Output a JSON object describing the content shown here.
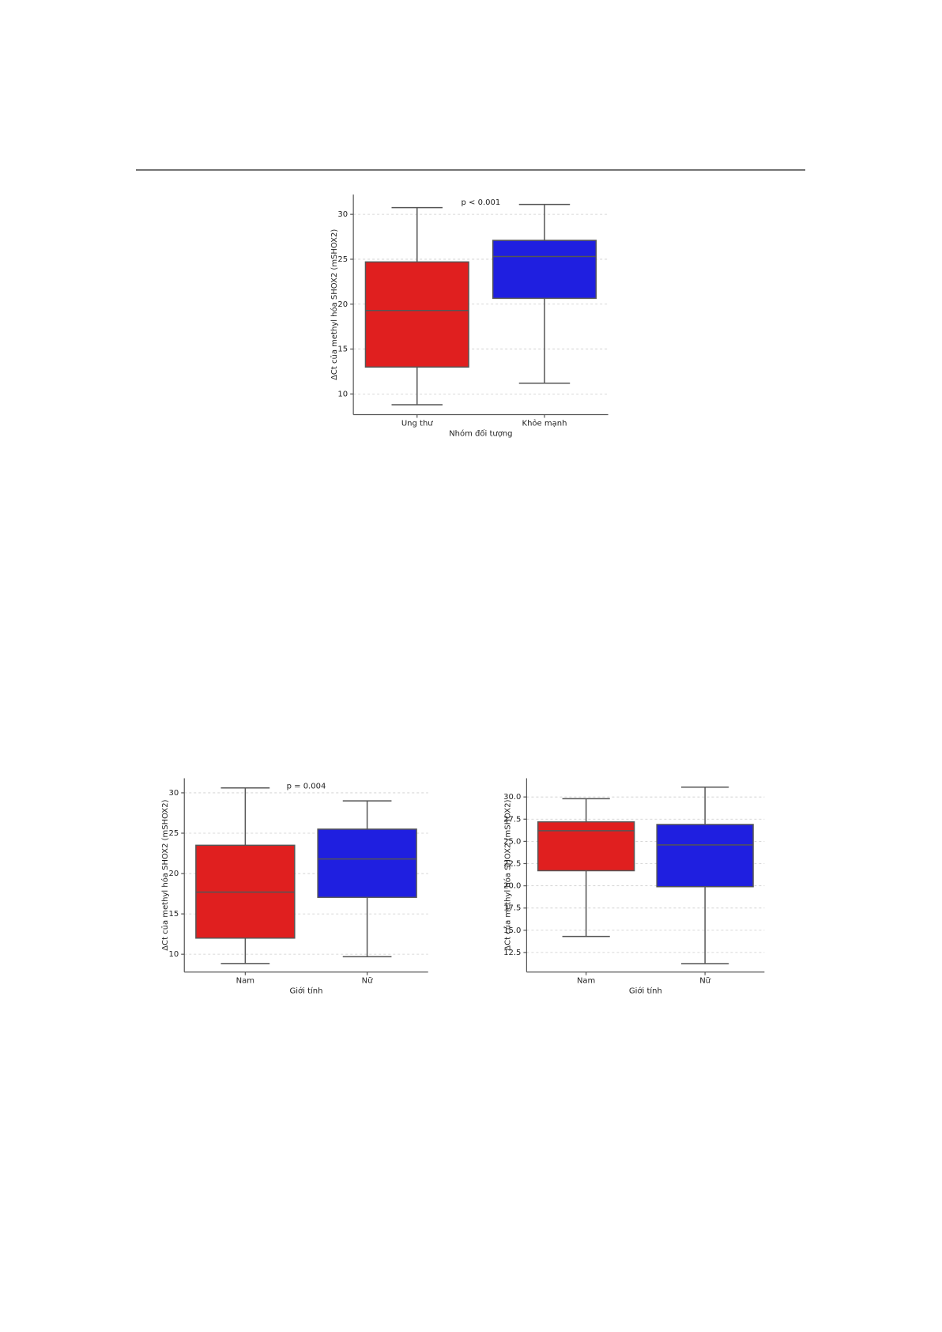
{
  "chart_data": [
    {
      "type": "box",
      "annotation": "p < 0.001",
      "x_label": "Nhóm đối tượng",
      "y_label": "ΔCt của methyl hóa SHOX2 (mSHOX2)",
      "categories": [
        "Ung thư",
        "Khỏe mạnh"
      ],
      "colors": [
        "#e01f1f",
        "#1f1fe0"
      ],
      "boxes": [
        {
          "min": 8.8,
          "q1": 13.0,
          "median": 19.3,
          "q3": 24.7,
          "max": 30.75
        },
        {
          "min": 11.2,
          "q1": 20.65,
          "median": 25.3,
          "q3": 27.1,
          "max": 31.1
        }
      ],
      "ylim": [
        7.7,
        32.2
      ],
      "yticks": [
        10,
        15,
        20,
        25,
        30
      ],
      "grid": true
    },
    {
      "type": "box",
      "annotation": "p = 0.004",
      "x_label": "Giới tính",
      "y_label": "ΔCt của methyl hóa SHOX2 (mSHOX2)",
      "categories": [
        "Nam",
        "Nữ"
      ],
      "colors": [
        "#e01f1f",
        "#1f1fe0"
      ],
      "boxes": [
        {
          "min": 8.85,
          "q1": 12.0,
          "median": 17.7,
          "q3": 23.5,
          "max": 30.6
        },
        {
          "min": 9.7,
          "q1": 17.05,
          "median": 21.8,
          "q3": 25.5,
          "max": 29.0
        }
      ],
      "ylim": [
        7.8,
        31.8
      ],
      "yticks": [
        10,
        15,
        20,
        25,
        30
      ],
      "grid": true
    },
    {
      "type": "box",
      "x_label": "Giới tính",
      "y_label": "ΔCt của methyl hóa SHOX2 (mSHOX2)",
      "categories": [
        "Nam",
        "Nữ"
      ],
      "colors": [
        "#e01f1f",
        "#1f1fe0"
      ],
      "boxes": [
        {
          "min": 14.3,
          "q1": 21.7,
          "median": 26.2,
          "q3": 27.2,
          "max": 29.8
        },
        {
          "min": 11.25,
          "q1": 19.9,
          "median": 24.6,
          "q3": 26.9,
          "max": 31.1
        }
      ],
      "ylim": [
        10.3,
        32.1
      ],
      "yticks": [
        12.5,
        {
          "value": 15,
          "label": "15.0"
        },
        17.5,
        {
          "value": 20,
          "label": "20.0"
        },
        22.5,
        {
          "value": 25,
          "label": "25.0"
        },
        27.5,
        {
          "value": 30,
          "label": "30.0"
        }
      ],
      "grid": true
    }
  ]
}
